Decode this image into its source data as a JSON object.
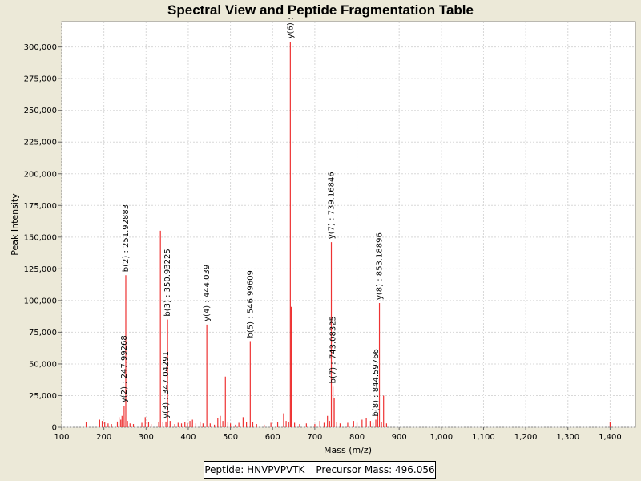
{
  "chart_data": {
    "type": "bar",
    "title": "Spectral View and Peptide Fragmentation Table",
    "xlabel": "Mass (m/z)",
    "ylabel": "Peak Intensity",
    "xlim": [
      100,
      1460
    ],
    "ylim": [
      0,
      320000
    ],
    "x_ticks": [
      100,
      200,
      300,
      400,
      500,
      600,
      700,
      800,
      900,
      1000,
      1100,
      1200,
      1300,
      1400
    ],
    "x_tick_labels": [
      "100",
      "200",
      "300",
      "400",
      "500",
      "600",
      "700",
      "800",
      "900",
      "1,000",
      "1,100",
      "1,200",
      "1,300",
      "1,400"
    ],
    "y_ticks": [
      0,
      25000,
      50000,
      75000,
      100000,
      125000,
      150000,
      175000,
      200000,
      225000,
      250000,
      275000,
      300000
    ],
    "y_tick_labels": [
      "0",
      "25,000",
      "50,000",
      "75,000",
      "100,000",
      "125,000",
      "150,000",
      "175,000",
      "200,000",
      "225,000",
      "250,000",
      "275,000",
      "300,000"
    ],
    "grid": true,
    "series_color": "#ee3333",
    "peaks": [
      {
        "mz": 158,
        "intensity": 4000
      },
      {
        "mz": 190,
        "intensity": 6000
      },
      {
        "mz": 196,
        "intensity": 5000
      },
      {
        "mz": 202,
        "intensity": 4000
      },
      {
        "mz": 210,
        "intensity": 3000
      },
      {
        "mz": 218,
        "intensity": 2500
      },
      {
        "mz": 232,
        "intensity": 4500
      },
      {
        "mz": 236,
        "intensity": 8000
      },
      {
        "mz": 240,
        "intensity": 6000
      },
      {
        "mz": 243,
        "intensity": 9000
      },
      {
        "mz": 247.99,
        "intensity": 17000
      },
      {
        "mz": 251.93,
        "intensity": 120000
      },
      {
        "mz": 256,
        "intensity": 5000
      },
      {
        "mz": 262,
        "intensity": 3000
      },
      {
        "mz": 270,
        "intensity": 2500
      },
      {
        "mz": 290,
        "intensity": 3500
      },
      {
        "mz": 298,
        "intensity": 8000
      },
      {
        "mz": 306,
        "intensity": 4000
      },
      {
        "mz": 312,
        "intensity": 2500
      },
      {
        "mz": 330,
        "intensity": 4000
      },
      {
        "mz": 334,
        "intensity": 155000
      },
      {
        "mz": 340,
        "intensity": 4000
      },
      {
        "mz": 347.04,
        "intensity": 4500
      },
      {
        "mz": 350.93,
        "intensity": 85000
      },
      {
        "mz": 357,
        "intensity": 5000
      },
      {
        "mz": 368,
        "intensity": 2500
      },
      {
        "mz": 376,
        "intensity": 3500
      },
      {
        "mz": 384,
        "intensity": 3000
      },
      {
        "mz": 392,
        "intensity": 4000
      },
      {
        "mz": 398,
        "intensity": 3000
      },
      {
        "mz": 404,
        "intensity": 5000
      },
      {
        "mz": 410,
        "intensity": 6000
      },
      {
        "mz": 418,
        "intensity": 3000
      },
      {
        "mz": 428,
        "intensity": 4500
      },
      {
        "mz": 435,
        "intensity": 3000
      },
      {
        "mz": 444.04,
        "intensity": 81000
      },
      {
        "mz": 452,
        "intensity": 3000
      },
      {
        "mz": 462,
        "intensity": 2000
      },
      {
        "mz": 470,
        "intensity": 7000
      },
      {
        "mz": 476,
        "intensity": 9000
      },
      {
        "mz": 482,
        "intensity": 5000
      },
      {
        "mz": 488,
        "intensity": 40000
      },
      {
        "mz": 494,
        "intensity": 4000
      },
      {
        "mz": 500,
        "intensity": 3000
      },
      {
        "mz": 512,
        "intensity": 2000
      },
      {
        "mz": 520,
        "intensity": 3500
      },
      {
        "mz": 530,
        "intensity": 8000
      },
      {
        "mz": 538,
        "intensity": 4000
      },
      {
        "mz": 546.99,
        "intensity": 68000
      },
      {
        "mz": 553,
        "intensity": 4000
      },
      {
        "mz": 562,
        "intensity": 2500
      },
      {
        "mz": 580,
        "intensity": 2000
      },
      {
        "mz": 596,
        "intensity": 3500
      },
      {
        "mz": 612,
        "intensity": 4000
      },
      {
        "mz": 626,
        "intensity": 11000
      },
      {
        "mz": 632,
        "intensity": 5000
      },
      {
        "mz": 638,
        "intensity": 4000
      },
      {
        "mz": 642,
        "intensity": 304000
      },
      {
        "mz": 644,
        "intensity": 95000
      },
      {
        "mz": 652,
        "intensity": 3500
      },
      {
        "mz": 664,
        "intensity": 2500
      },
      {
        "mz": 680,
        "intensity": 3000
      },
      {
        "mz": 700,
        "intensity": 2500
      },
      {
        "mz": 712,
        "intensity": 5000
      },
      {
        "mz": 722,
        "intensity": 3500
      },
      {
        "mz": 730,
        "intensity": 9000
      },
      {
        "mz": 735,
        "intensity": 5000
      },
      {
        "mz": 739.17,
        "intensity": 146000
      },
      {
        "mz": 743.08,
        "intensity": 32000
      },
      {
        "mz": 746,
        "intensity": 23000
      },
      {
        "mz": 752,
        "intensity": 4000
      },
      {
        "mz": 760,
        "intensity": 3000
      },
      {
        "mz": 778,
        "intensity": 3500
      },
      {
        "mz": 792,
        "intensity": 5000
      },
      {
        "mz": 800,
        "intensity": 3500
      },
      {
        "mz": 812,
        "intensity": 6000
      },
      {
        "mz": 822,
        "intensity": 7000
      },
      {
        "mz": 832,
        "intensity": 5000
      },
      {
        "mz": 838,
        "intensity": 3500
      },
      {
        "mz": 844.6,
        "intensity": 6000
      },
      {
        "mz": 849,
        "intensity": 10000
      },
      {
        "mz": 853.19,
        "intensity": 98000
      },
      {
        "mz": 858,
        "intensity": 4000
      },
      {
        "mz": 863,
        "intensity": 25000
      },
      {
        "mz": 870,
        "intensity": 3000
      },
      {
        "mz": 1400,
        "intensity": 4000
      }
    ],
    "annotations": [
      {
        "text": "y(2) : 247.99268",
        "mz": 247.99,
        "intensity": 17000
      },
      {
        "text": "b(2) : 251.92883",
        "mz": 251.93,
        "intensity": 120000
      },
      {
        "text": "y(3) : 347.04291",
        "mz": 347.04,
        "intensity": 4500
      },
      {
        "text": "b(3) : 350.93225",
        "mz": 350.93,
        "intensity": 85000
      },
      {
        "text": "y(4) : 444.039",
        "mz": 444.04,
        "intensity": 81000
      },
      {
        "text": "b(5) : 546.99609",
        "mz": 546.99,
        "intensity": 68000
      },
      {
        "text": "y(6) :",
        "mz": 642,
        "intensity": 304000
      },
      {
        "text": "y(7) : 739.16846",
        "mz": 739.17,
        "intensity": 146000
      },
      {
        "text": "b(7) : 743.08325",
        "mz": 743.08,
        "intensity": 32000
      },
      {
        "text": "b(8) : 844.59766",
        "mz": 844.6,
        "intensity": 6000
      },
      {
        "text": "y(8) : 853.18896",
        "mz": 853.19,
        "intensity": 98000
      }
    ]
  },
  "legend": {
    "peptide": "Peptide: HNVPVPVTK",
    "precursor": "Precursor Mass: 496.056"
  }
}
